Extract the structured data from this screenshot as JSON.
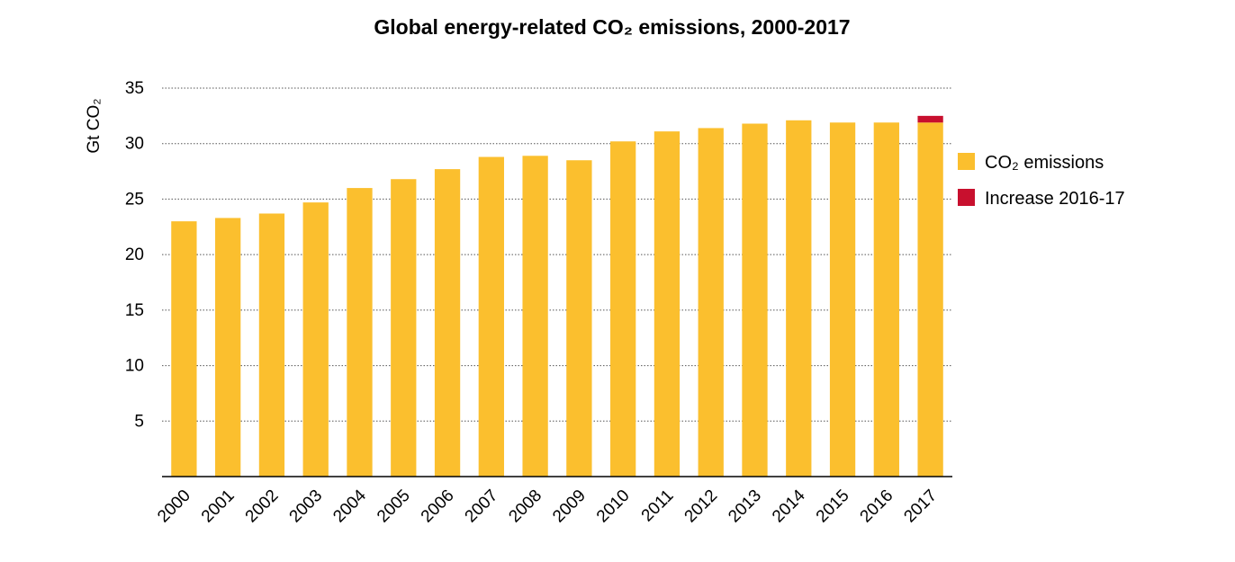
{
  "chart_data": {
    "type": "bar",
    "stacked": true,
    "title": "Global energy-related CO₂ emissions, 2000-2017",
    "ylabel": "Gt CO₂",
    "xlabel": "",
    "ylim": [
      0,
      35
    ],
    "yticks": [
      5,
      10,
      15,
      20,
      25,
      30,
      35
    ],
    "grid": true,
    "legend_position": "right",
    "categories": [
      "2000",
      "2001",
      "2002",
      "2003",
      "2004",
      "2005",
      "2006",
      "2007",
      "2008",
      "2009",
      "2010",
      "2011",
      "2012",
      "2013",
      "2014",
      "2015",
      "2016",
      "2017"
    ],
    "series": [
      {
        "name": "CO₂ emissions",
        "color": "#FBBF2E",
        "values": [
          23.0,
          23.3,
          23.7,
          24.7,
          26.0,
          26.8,
          27.7,
          28.8,
          28.9,
          28.5,
          30.2,
          31.1,
          31.4,
          31.8,
          32.1,
          31.9,
          31.9,
          31.9
        ]
      },
      {
        "name": "Increase 2016-17",
        "color": "#C8102E",
        "values": [
          0,
          0,
          0,
          0,
          0,
          0,
          0,
          0,
          0,
          0,
          0,
          0,
          0,
          0,
          0,
          0,
          0,
          0.6
        ]
      }
    ]
  }
}
